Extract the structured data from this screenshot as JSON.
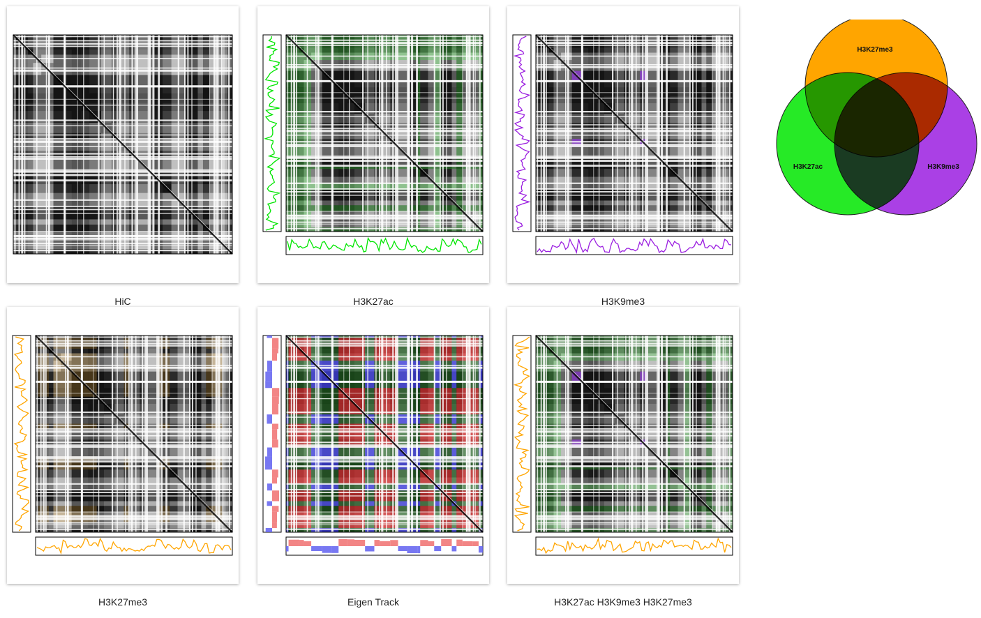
{
  "panels": [
    {
      "label": "HiC",
      "tracks": [],
      "tint": null
    },
    {
      "label": "H3K27ac",
      "tracks": [
        "#00e600"
      ],
      "tint": "green"
    },
    {
      "label": "H3K9me3",
      "tracks": [
        "#9b1fe0"
      ],
      "tint": "purple"
    },
    {
      "label": "H3K27me3",
      "tracks": [
        "#ffa500"
      ],
      "tint": "orange"
    },
    {
      "label": "Eigen Track",
      "tracks": [
        "eigen"
      ],
      "tint": "eigen"
    },
    {
      "label": "H3K27ac H3K9me3 H3K27me3",
      "tracks": [
        "#00e600",
        "#9b1fe0",
        "#ffa500"
      ],
      "tint": "combo"
    }
  ],
  "venn": {
    "sets": [
      {
        "label": "H3K27me3",
        "color": "#ffa500"
      },
      {
        "label": "H3K27ac",
        "color": "#00e600"
      },
      {
        "label": "H3K9me3",
        "color": "#9b1fe0"
      }
    ]
  },
  "colors": {
    "h3k27ac": "#00e600",
    "h3k9me3": "#9b1fe0",
    "h3k27me3": "#ffa500",
    "eigen_positive": "#f07070",
    "eigen_negative": "#6060f0"
  }
}
